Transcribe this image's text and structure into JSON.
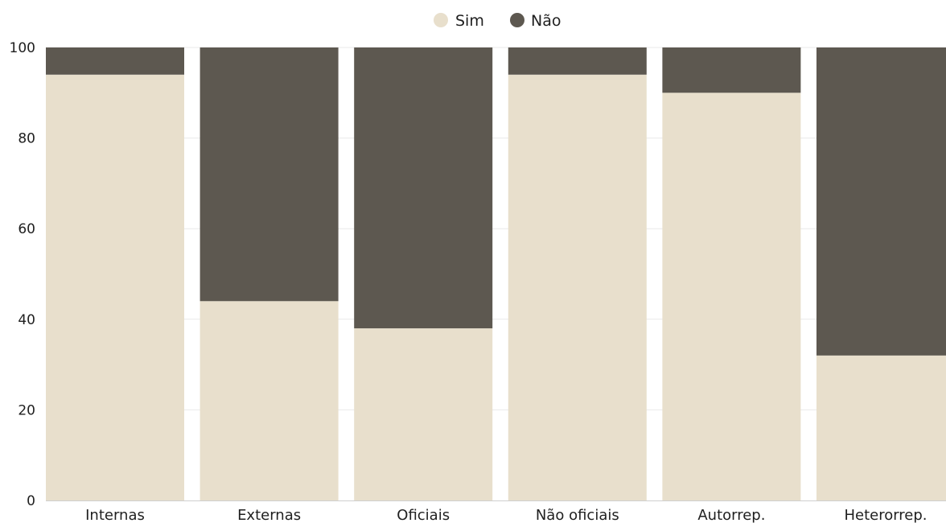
{
  "chart_data": {
    "type": "bar",
    "stacked": true,
    "percent_stacked": true,
    "categories": [
      "Internas",
      "Externas",
      "Oficiais",
      "Não oficiais",
      "Autorrep.",
      "Heterorrep."
    ],
    "series": [
      {
        "name": "Sim",
        "color": "#e8dfcc",
        "values": [
          94,
          44,
          38,
          94,
          90,
          32
        ]
      },
      {
        "name": "Não",
        "color": "#5d5850",
        "values": [
          6,
          56,
          62,
          6,
          10,
          68
        ]
      }
    ],
    "title": "",
    "xlabel": "",
    "ylabel": "",
    "ylim": [
      0,
      100
    ],
    "yticks": [
      "0",
      "20",
      "40",
      "60",
      "80",
      "100"
    ],
    "grid": true,
    "legend_position": "top-center"
  }
}
